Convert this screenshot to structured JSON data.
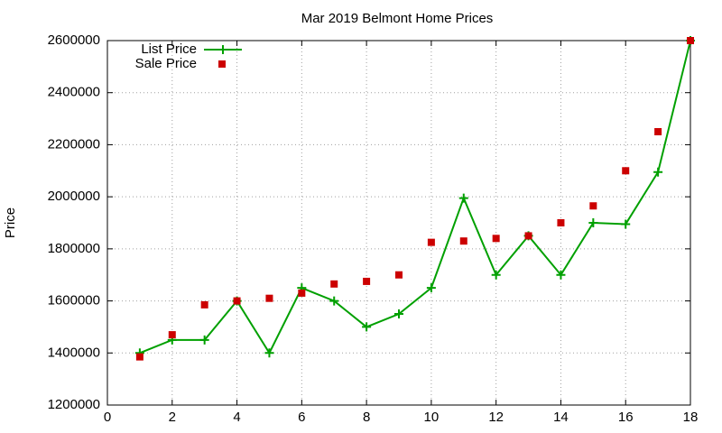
{
  "chart_data": {
    "type": "line",
    "title": "Mar 2019 Belmont Home Prices",
    "y_label": "Price",
    "x": [
      1,
      2,
      3,
      4,
      5,
      6,
      7,
      8,
      9,
      10,
      11,
      12,
      13,
      14,
      15,
      16,
      17,
      18
    ],
    "series": [
      {
        "name": "List Price",
        "color": "#00a000",
        "style": "linespoints",
        "values": [
          1400000,
          1450000,
          1450000,
          1600000,
          1400000,
          1650000,
          1600000,
          1500000,
          1550000,
          1650000,
          1995000,
          1700000,
          1850000,
          1700000,
          1900000,
          1895000,
          2095000,
          2600000
        ]
      },
      {
        "name": "Sale Price",
        "color": "#cc0000",
        "style": "points",
        "values": [
          1385000,
          1470000,
          1585000,
          1600000,
          1610000,
          1630000,
          1665000,
          1675000,
          1700000,
          1825000,
          1830000,
          1840000,
          1850000,
          1900000,
          1965000,
          2100000,
          2250000,
          2600000
        ]
      }
    ],
    "xlim": [
      0,
      18
    ],
    "xticks": [
      0,
      2,
      4,
      6,
      8,
      10,
      12,
      14,
      16,
      18
    ],
    "ylim": [
      1200000,
      2600000
    ],
    "yticks": [
      1200000,
      1400000,
      1600000,
      1800000,
      2000000,
      2200000,
      2400000,
      2600000
    ],
    "grid": true,
    "legend": "top-left"
  }
}
